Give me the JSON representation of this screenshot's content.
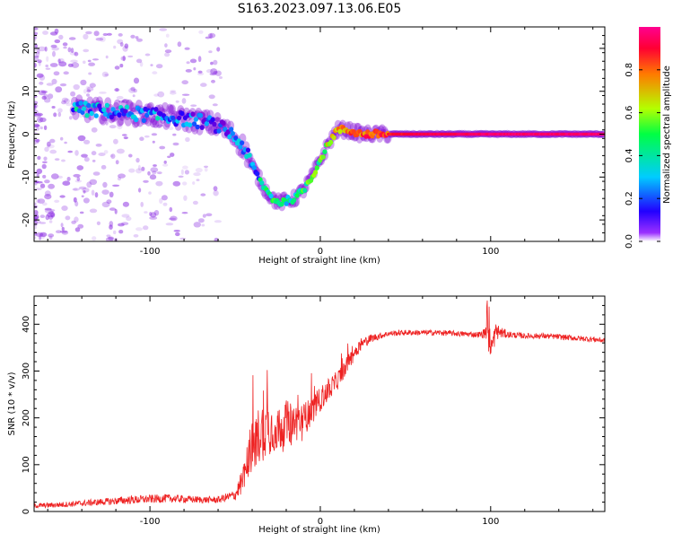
{
  "figure_title": "S163.2023.097.13.06.E05",
  "colors": {
    "snr_line": "#ee2222",
    "spectrogram_scatter": "#8a2be2",
    "colormap": [
      "#ffffff",
      "#7b00d4",
      "#2200ff",
      "#00ccff",
      "#00ff44",
      "#b4ff00",
      "#ff7a00",
      "#ff0033",
      "#ff0090"
    ]
  },
  "chart_data": [
    {
      "type": "heatmap",
      "title": "S163.2023.097.13.06.E05",
      "xlabel": "Height of straight line (km)",
      "ylabel": "Frequency (Hz)",
      "xlim": [
        -168,
        167
      ],
      "ylim": [
        -25,
        25
      ],
      "x_ticks": [
        -100,
        0,
        100
      ],
      "x_tick_labels": [
        "-100",
        "0",
        "100"
      ],
      "y_ticks": [
        -20,
        -10,
        0,
        10,
        20
      ],
      "y_tick_labels": [
        "-20",
        "-10",
        "0",
        "10",
        "20"
      ],
      "colorbar": {
        "label": "Normalized spectral amplitude",
        "range": [
          0,
          1
        ],
        "ticks": [
          0.0,
          0.2,
          0.4,
          0.6,
          0.8
        ],
        "tick_labels": [
          "0.0",
          "0.2",
          "0.4",
          "0.6",
          "0.8"
        ]
      },
      "ridge": {
        "x": [
          -145,
          -130,
          -115,
          -100,
          -90,
          -80,
          -70,
          -60,
          -52,
          -45,
          -38,
          -32,
          -28,
          -24,
          -20,
          -15,
          -10,
          -5,
          0,
          5,
          10,
          15,
          20,
          25,
          30,
          40,
          60,
          80,
          100,
          120,
          140,
          166
        ],
        "freq": [
          6,
          5.5,
          5,
          4.5,
          4,
          3.5,
          3,
          2,
          0,
          -3,
          -9,
          -13,
          -15,
          -16,
          -15.5,
          -15,
          -13,
          -10,
          -6,
          -2,
          1,
          1,
          0.5,
          0,
          0,
          0,
          0,
          0,
          0,
          0,
          0,
          0
        ],
        "amplitude": [
          0.35,
          0.3,
          0.3,
          0.32,
          0.3,
          0.28,
          0.25,
          0.22,
          0.25,
          0.3,
          0.35,
          0.4,
          0.45,
          0.45,
          0.45,
          0.5,
          0.55,
          0.55,
          0.55,
          0.6,
          0.65,
          0.7,
          0.75,
          0.8,
          0.85,
          0.85,
          0.9,
          0.92,
          0.95,
          0.95,
          0.95,
          0.95
        ]
      }
    },
    {
      "type": "line",
      "xlabel": "Height of straight line (km)",
      "ylabel": "SNR (10 * v/v)",
      "xlim": [
        -168,
        167
      ],
      "ylim": [
        0,
        460
      ],
      "x_ticks": [
        -100,
        0,
        100
      ],
      "x_tick_labels": [
        "-100",
        "0",
        "100"
      ],
      "y_ticks": [
        0,
        100,
        200,
        300,
        400
      ],
      "y_tick_labels": [
        "0",
        "100",
        "200",
        "300",
        "400"
      ],
      "series": [
        {
          "x": [
            -168,
            -150,
            -130,
            -110,
            -90,
            -70,
            -60,
            -50,
            -45,
            -40,
            -35,
            -30,
            -25,
            -20,
            -15,
            -10,
            -5,
            0,
            5,
            10,
            15,
            20,
            25,
            30,
            35,
            40,
            50,
            60,
            70,
            80,
            90,
            95,
            99,
            100,
            103,
            110,
            120,
            130,
            140,
            150,
            160,
            167
          ],
          "y": [
            12,
            15,
            20,
            25,
            28,
            25,
            25,
            35,
            70,
            140,
            170,
            180,
            175,
            190,
            190,
            195,
            215,
            240,
            260,
            280,
            310,
            340,
            360,
            370,
            375,
            380,
            382,
            382,
            382,
            380,
            378,
            378,
            390,
            340,
            385,
            378,
            375,
            375,
            373,
            370,
            368,
            365
          ],
          "spread": [
            8,
            10,
            12,
            15,
            15,
            12,
            12,
            20,
            50,
            90,
            110,
            100,
            80,
            80,
            70,
            60,
            50,
            45,
            40,
            35,
            30,
            25,
            20,
            15,
            12,
            10,
            10,
            10,
            10,
            10,
            10,
            12,
            40,
            60,
            30,
            12,
            10,
            10,
            10,
            10,
            10,
            10
          ]
        }
      ]
    }
  ]
}
